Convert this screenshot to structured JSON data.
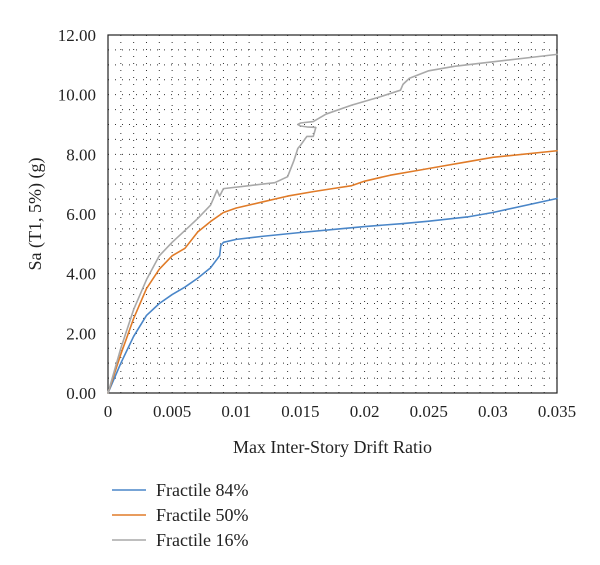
{
  "chart_data": {
    "type": "line",
    "title": "",
    "xlabel": "Max Inter-Story Drift Ratio",
    "ylabel": "Sa (T1, 5%) (g)",
    "xlim": [
      0,
      0.035
    ],
    "ylim": [
      0,
      12
    ],
    "grid": "dotted",
    "legend_position": "bottom-left",
    "xticks": [
      0,
      0.005,
      0.01,
      0.015,
      0.02,
      0.025,
      0.03,
      0.035
    ],
    "xtick_labels": [
      "0",
      "0.005",
      "0.01",
      "0.015",
      "0.02",
      "0.025",
      "0.03",
      "0.035"
    ],
    "yticks": [
      0,
      2,
      4,
      6,
      8,
      10,
      12
    ],
    "ytick_labels": [
      "0.00",
      "2.00",
      "4.00",
      "6.00",
      "8.00",
      "10.00",
      "12.00"
    ],
    "series": [
      {
        "name": "Fractile 84%",
        "color": "#4a86c8",
        "x": [
          0,
          0.001,
          0.002,
          0.003,
          0.004,
          0.005,
          0.006,
          0.007,
          0.008,
          0.0087,
          0.0088,
          0.009,
          0.01,
          0.012,
          0.015,
          0.018,
          0.02,
          0.023,
          0.025,
          0.028,
          0.03,
          0.035
        ],
        "y": [
          0,
          1.0,
          1.9,
          2.6,
          3.0,
          3.3,
          3.55,
          3.85,
          4.2,
          4.6,
          4.95,
          5.05,
          5.15,
          5.25,
          5.38,
          5.5,
          5.58,
          5.68,
          5.76,
          5.9,
          6.05,
          6.52
        ]
      },
      {
        "name": "Fractile 50%",
        "color": "#e07b28",
        "x": [
          0,
          0.001,
          0.002,
          0.003,
          0.004,
          0.005,
          0.006,
          0.007,
          0.008,
          0.009,
          0.01,
          0.012,
          0.014,
          0.016,
          0.0175,
          0.019,
          0.02,
          0.022,
          0.024,
          0.026,
          0.028,
          0.03,
          0.035
        ],
        "y": [
          0,
          1.3,
          2.5,
          3.5,
          4.15,
          4.6,
          4.85,
          5.4,
          5.75,
          6.05,
          6.2,
          6.4,
          6.6,
          6.75,
          6.85,
          6.95,
          7.1,
          7.3,
          7.45,
          7.6,
          7.75,
          7.9,
          8.12
        ]
      },
      {
        "name": "Fractile 16%",
        "color": "#a9a9a9",
        "x": [
          0,
          0.001,
          0.002,
          0.003,
          0.004,
          0.005,
          0.006,
          0.007,
          0.008,
          0.0085,
          0.0087,
          0.009,
          0.011,
          0.013,
          0.014,
          0.0145,
          0.0148,
          0.015,
          0.0155,
          0.016,
          0.0162,
          0.0155,
          0.015,
          0.0148,
          0.015,
          0.016,
          0.017,
          0.019,
          0.021,
          0.0228,
          0.023,
          0.0235,
          0.025,
          0.027,
          0.03,
          0.033,
          0.035
        ],
        "y": [
          0,
          1.5,
          2.8,
          3.8,
          4.6,
          5.05,
          5.45,
          5.85,
          6.3,
          6.8,
          6.6,
          6.85,
          6.95,
          7.05,
          7.25,
          7.8,
          8.2,
          8.3,
          8.6,
          8.6,
          8.9,
          8.92,
          8.95,
          9.0,
          9.05,
          9.1,
          9.35,
          9.65,
          9.9,
          10.15,
          10.35,
          10.55,
          10.8,
          10.95,
          11.1,
          11.25,
          11.35
        ]
      }
    ]
  }
}
